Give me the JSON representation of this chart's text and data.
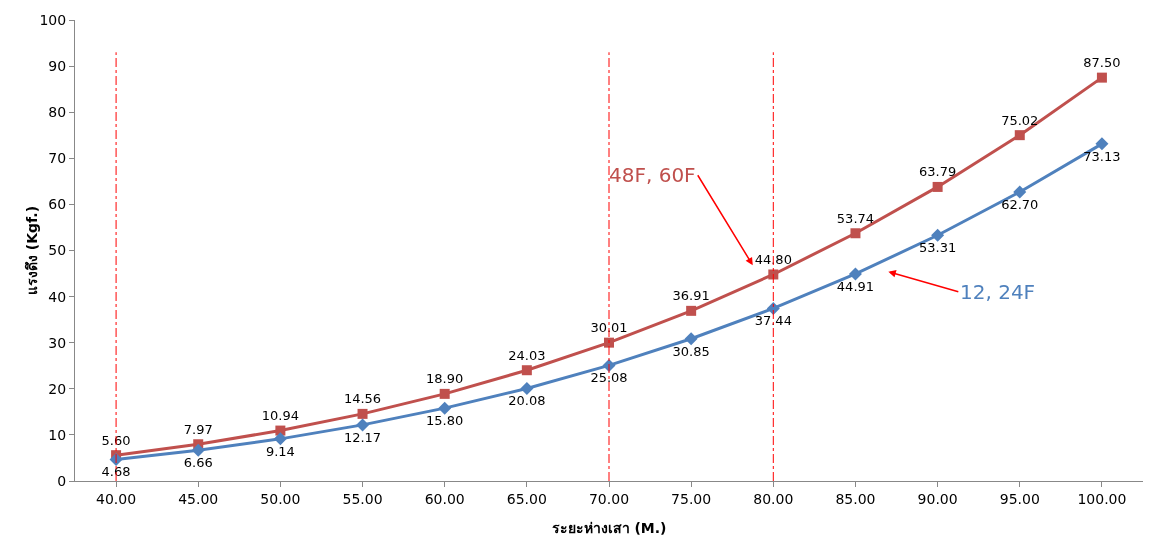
{
  "chart_data": {
    "type": "line",
    "xlabel": "ระยะห่างเสา (M.)",
    "ylabel": "แรงดึง (Kgf.)",
    "categories": [
      "40.00",
      "45.00",
      "50.00",
      "55.00",
      "60.00",
      "65.00",
      "70.00",
      "75.00",
      "80.00",
      "85.00",
      "90.00",
      "95.00",
      "100.00"
    ],
    "series": [
      {
        "name": "48F, 60F",
        "color": "#c0504d",
        "marker": "square",
        "values": [
          5.6,
          7.97,
          10.94,
          14.56,
          18.9,
          24.03,
          30.01,
          36.91,
          44.8,
          53.74,
          63.79,
          75.02,
          87.5
        ],
        "value_labels": [
          "5.60",
          "7.97",
          "10.94",
          "14.56",
          "18.90",
          "24.03",
          "30.01",
          "36.91",
          "44.80",
          "53.74",
          "63.79",
          "75.02",
          "87.50"
        ]
      },
      {
        "name": "12, 24F",
        "color": "#4f81bd",
        "marker": "diamond",
        "values": [
          4.68,
          6.66,
          9.14,
          12.17,
          15.8,
          20.08,
          25.08,
          30.85,
          37.44,
          44.91,
          53.31,
          62.7,
          73.13
        ],
        "value_labels": [
          "4.68",
          "6.66",
          "9.14",
          "12.17",
          "15.80",
          "20.08",
          "25.08",
          "30.85",
          "37.44",
          "44.91",
          "53.31",
          "62.70",
          "73.13"
        ]
      }
    ],
    "ylim": [
      0,
      100
    ],
    "yticks": [
      0,
      10,
      20,
      30,
      40,
      50,
      60,
      70,
      80,
      90,
      100
    ],
    "ref_lines": [
      {
        "axis": "x",
        "value": "40.00",
        "color": "#ff0000",
        "line_style": "dashed"
      },
      {
        "axis": "x",
        "value": "70.00",
        "color": "#ff0000",
        "line_style": "dashed"
      },
      {
        "axis": "x",
        "value": "80.00",
        "color": "#ff0000",
        "line_style": "dashed"
      }
    ],
    "grid": false,
    "legend": false,
    "line_style": "solid"
  }
}
